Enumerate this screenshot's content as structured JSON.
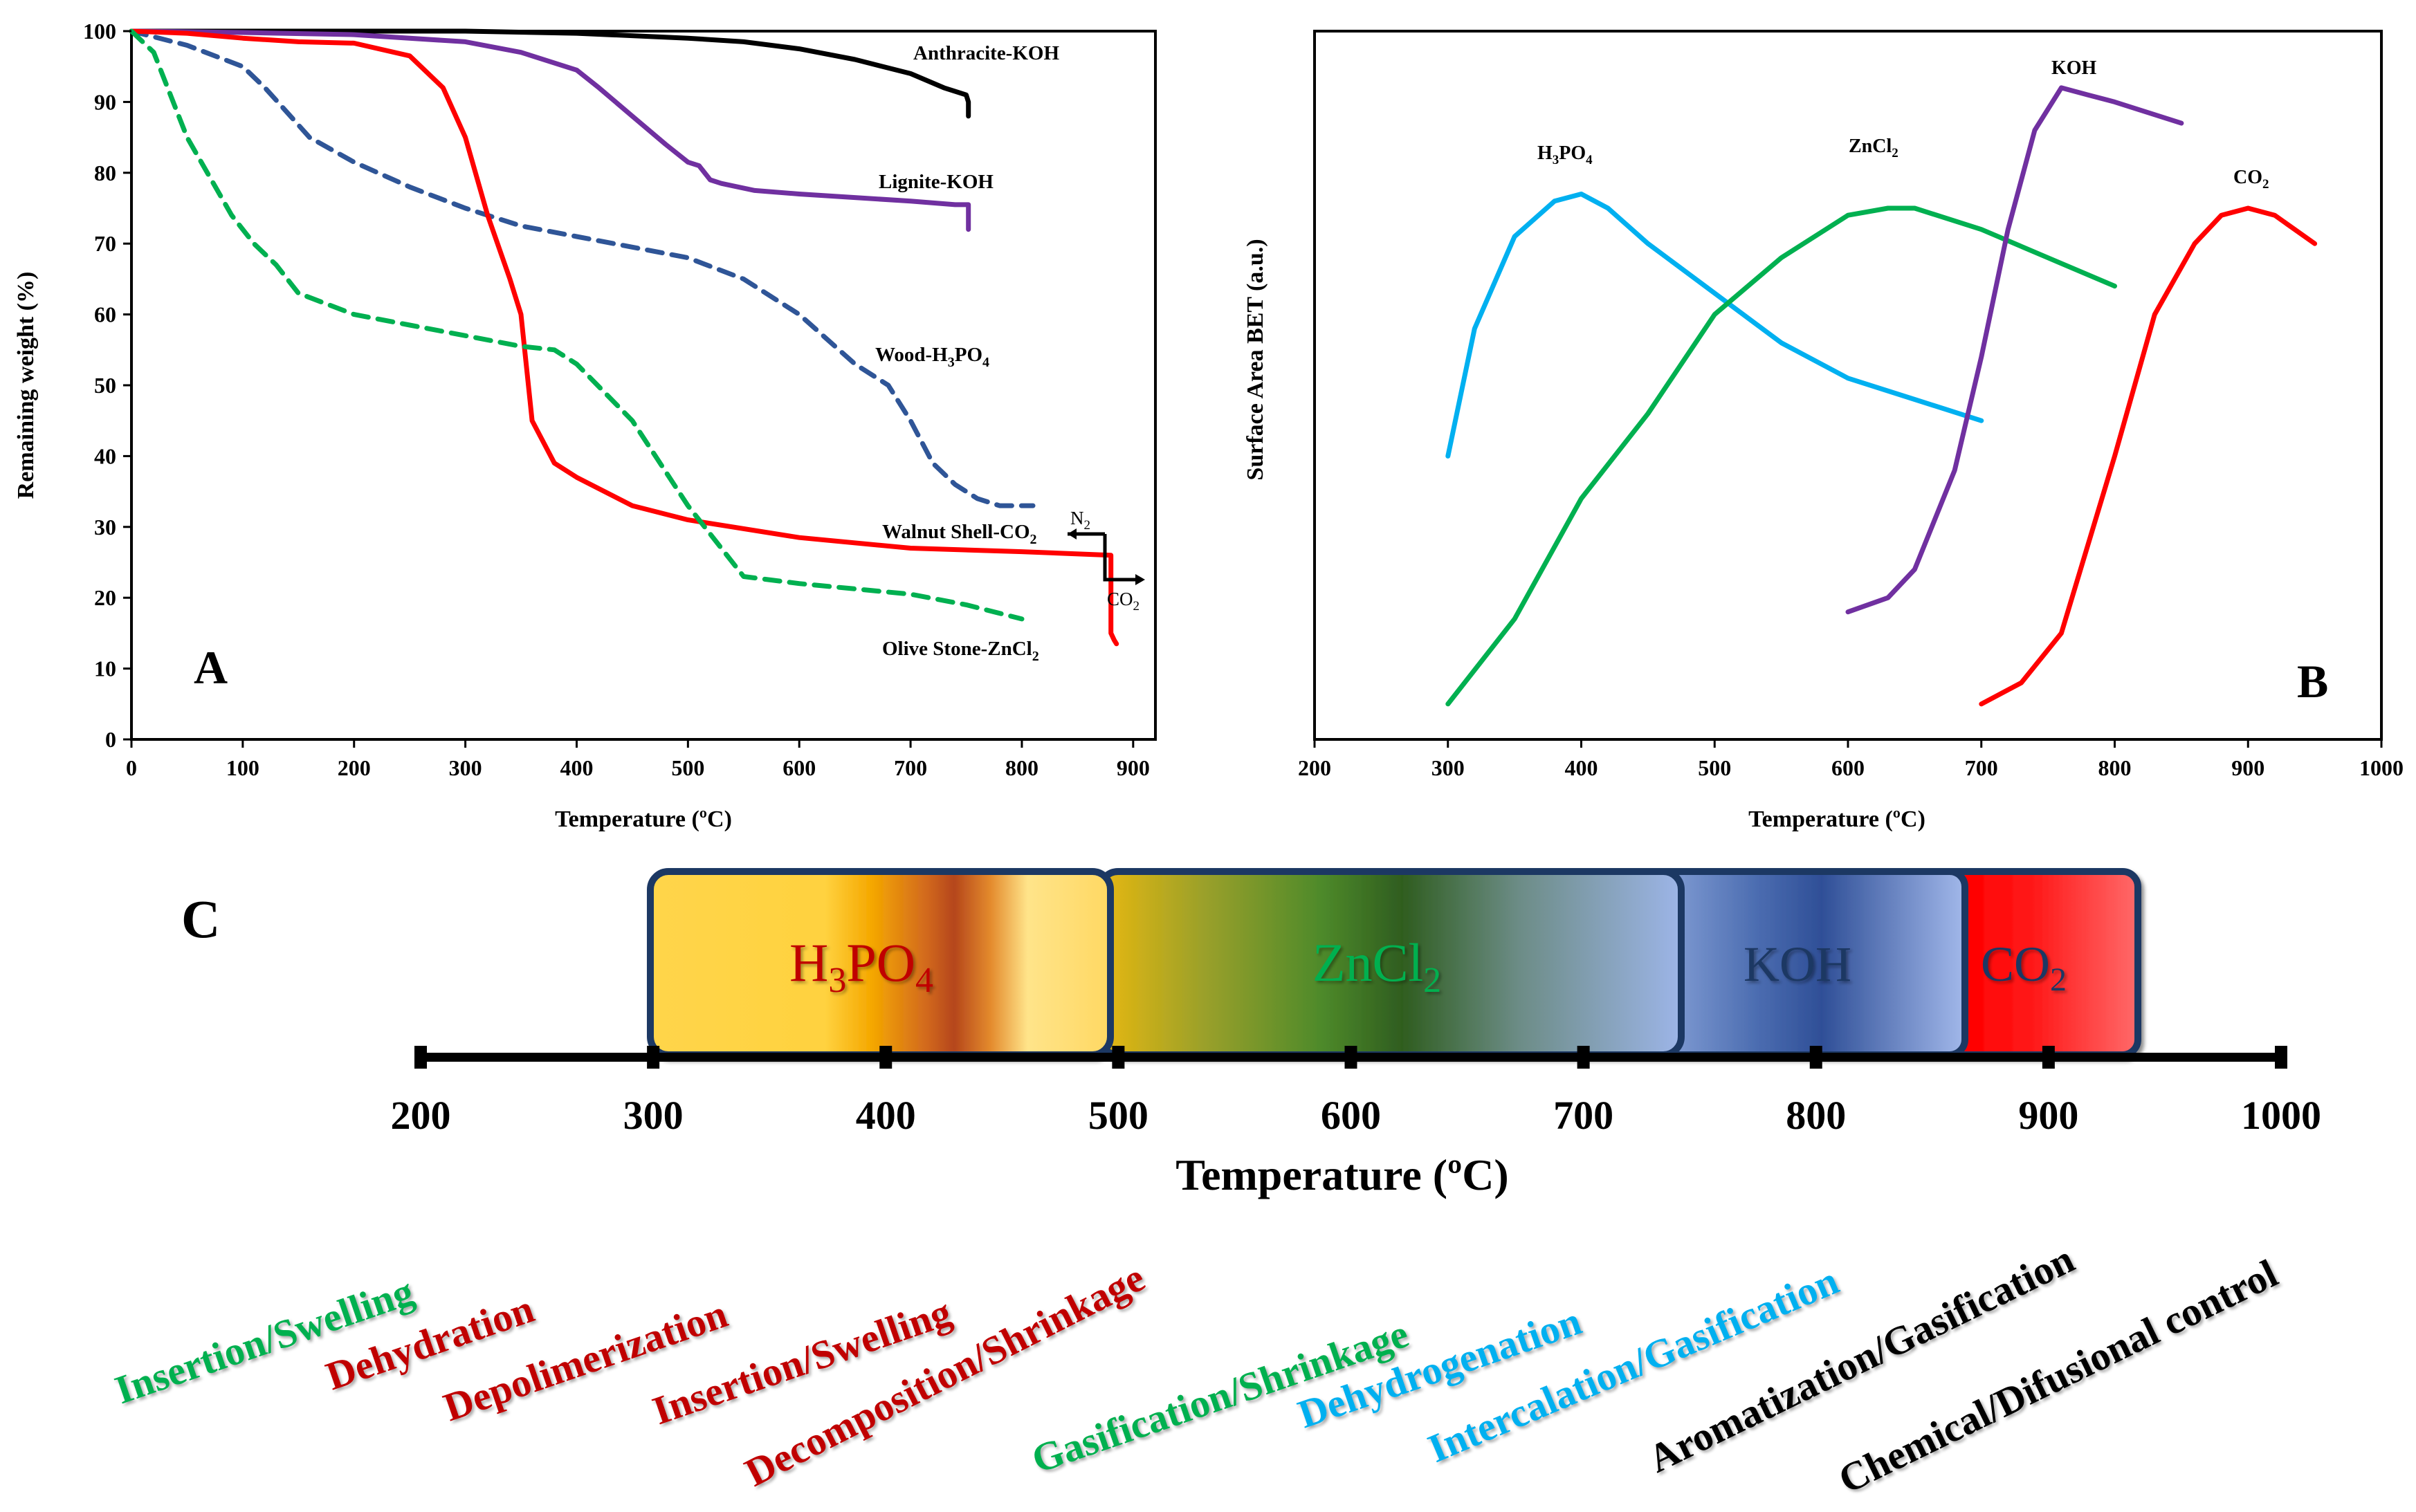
{
  "colors": {
    "axis": "#000000",
    "anthracite": "#000000",
    "lignite": "#7030a0",
    "wood": "#2f5597",
    "walnut": "#ff0000",
    "olive": "#00b050",
    "h3po4_b": "#00b0f0",
    "zncl2_b": "#00b050",
    "koh_b": "#7030a0",
    "co2_b": "#ff0000",
    "green_text": "#00b050",
    "red_text": "#c00000",
    "blue_text": "#00b0f0",
    "black_text": "#000000",
    "band_border": "#1f3864"
  },
  "chart_data": [
    {
      "panel": "A",
      "type": "line",
      "panel_label": "A",
      "xlabel": "Temperature (ºC)",
      "ylabel": "Remaining weight (%)",
      "xlim": [
        0,
        920
      ],
      "ylim": [
        0,
        100
      ],
      "xticks": [
        0,
        100,
        200,
        300,
        400,
        500,
        600,
        700,
        800,
        900
      ],
      "yticks": [
        0,
        10,
        20,
        30,
        40,
        50,
        60,
        70,
        80,
        90,
        100
      ],
      "series": [
        {
          "name": "Anthracite-KOH",
          "key": "anthracite",
          "dash": false,
          "x": [
            0,
            100,
            200,
            300,
            400,
            500,
            550,
            600,
            650,
            700,
            730,
            750,
            752,
            752
          ],
          "y": [
            100,
            100,
            100,
            100,
            99.7,
            99,
            98.5,
            97.5,
            96,
            94,
            92,
            91,
            90,
            88
          ]
        },
        {
          "name": "Lignite-KOH",
          "key": "lignite",
          "dash": false,
          "x": [
            0,
            100,
            200,
            300,
            350,
            400,
            420,
            450,
            480,
            500,
            510,
            520,
            530,
            560,
            600,
            650,
            700,
            740,
            750,
            752,
            752
          ],
          "y": [
            100,
            99.8,
            99.5,
            98.5,
            97,
            94.5,
            92,
            88,
            84,
            81.5,
            81,
            79,
            78.5,
            77.5,
            77,
            76.5,
            76,
            75.5,
            75.5,
            75.5,
            72
          ]
        },
        {
          "name": "Wood-H3PO4",
          "key": "wood",
          "dash": true,
          "x": [
            0,
            50,
            100,
            120,
            160,
            200,
            250,
            300,
            350,
            400,
            450,
            500,
            550,
            600,
            650,
            680,
            700,
            720,
            740,
            760,
            780,
            800,
            810
          ],
          "y": [
            100,
            98,
            95,
            92,
            85,
            81.5,
            78,
            75,
            72.5,
            71,
            69.5,
            68,
            65,
            60,
            53,
            50,
            45,
            39,
            36,
            34,
            33,
            33,
            33
          ]
        },
        {
          "name": "Walnut Shell-CO2",
          "key": "walnut",
          "dash": false,
          "x": [
            0,
            50,
            100,
            150,
            200,
            250,
            280,
            300,
            320,
            340,
            350,
            360,
            380,
            400,
            450,
            500,
            600,
            700,
            800,
            880,
            880,
            883,
            885
          ],
          "y": [
            100,
            99.7,
            99,
            98.5,
            98.3,
            96.5,
            92,
            85,
            74,
            65,
            60,
            45,
            39,
            37,
            33,
            31,
            28.5,
            27,
            26.5,
            26,
            15,
            14,
            13.5
          ]
        },
        {
          "name": "Olive Stone-ZnCl2",
          "key": "olive",
          "dash": true,
          "x": [
            0,
            20,
            50,
            90,
            110,
            130,
            150,
            200,
            250,
            300,
            350,
            380,
            400,
            450,
            500,
            550,
            600,
            700,
            750,
            800
          ],
          "y": [
            100,
            97,
            85,
            74,
            70,
            67,
            63,
            60,
            58.5,
            57,
            55.5,
            55,
            53,
            45,
            33,
            23,
            22,
            20.5,
            19,
            17
          ]
        }
      ],
      "series_labels": [
        "Anthracite-KOH",
        "Lignite-KOH",
        "Wood-H3PO4",
        "Walnut Shell-CO2",
        "Olive Stone-ZnCl2"
      ],
      "annotations": [
        {
          "text": "N",
          "sub": "2",
          "direction": "left"
        },
        {
          "text": "CO",
          "sub": "2",
          "direction": "right"
        }
      ]
    },
    {
      "panel": "B",
      "type": "line",
      "panel_label": "B",
      "xlabel": "Temperature (ºC)",
      "ylabel": "Surface Area BET (a.u.)",
      "xlim": [
        200,
        1000
      ],
      "ylim": [
        0,
        100
      ],
      "xticks": [
        200,
        300,
        400,
        500,
        600,
        700,
        800,
        900,
        1000
      ],
      "series": [
        {
          "name": "H3PO4",
          "key": "h3po4_b",
          "x": [
            300,
            320,
            350,
            380,
            400,
            420,
            450,
            500,
            550,
            600,
            650,
            700
          ],
          "y": [
            40,
            58,
            71,
            76,
            77,
            75,
            70,
            63,
            56,
            51,
            48,
            45
          ]
        },
        {
          "name": "ZnCl2",
          "key": "zncl2_b",
          "x": [
            300,
            350,
            400,
            450,
            500,
            550,
            600,
            630,
            650,
            700,
            750,
            800
          ],
          "y": [
            5,
            17,
            34,
            46,
            60,
            68,
            74,
            75,
            75,
            72,
            68,
            64
          ]
        },
        {
          "name": "KOH",
          "key": "koh_b",
          "x": [
            600,
            630,
            650,
            680,
            700,
            720,
            740,
            760,
            780,
            800,
            850
          ],
          "y": [
            18,
            20,
            24,
            38,
            54,
            72,
            86,
            92,
            91,
            90,
            87
          ]
        },
        {
          "name": "CO2",
          "key": "co2_b",
          "x": [
            700,
            730,
            760,
            800,
            830,
            860,
            880,
            900,
            920,
            950
          ],
          "y": [
            5,
            8,
            15,
            40,
            60,
            70,
            74,
            75,
            74,
            70
          ]
        }
      ],
      "series_labels": [
        {
          "main": "H",
          "sub": "3",
          "main2": "PO",
          "sub2": "4"
        },
        {
          "main": "ZnCl",
          "sub": "2"
        },
        {
          "main": "KOH"
        },
        {
          "main": "CO",
          "sub": "2"
        }
      ]
    },
    {
      "panel": "C",
      "type": "band",
      "panel_label": "C",
      "xlabel": "Temperature (ºC)",
      "xlim": [
        200,
        1000
      ],
      "xticks": [
        200,
        300,
        400,
        500,
        600,
        700,
        800,
        900,
        1000
      ],
      "bands": [
        {
          "label_main": "H",
          "sub1": "3",
          "label_mid": "PO",
          "sub2": "4",
          "from": 300,
          "to": 500,
          "text_color": "#c00000"
        },
        {
          "label_main": "ZnCl",
          "sub1": "2",
          "label_mid": "",
          "sub2": "",
          "from": 500,
          "to": 745,
          "text_color": "#00b050"
        },
        {
          "label_main": "KOH",
          "sub1": "",
          "label_mid": "",
          "sub2": "",
          "from": 740,
          "to": 866,
          "text_color": "#1f3864"
        },
        {
          "label_main": "CO",
          "sub1": "2",
          "label_mid": "",
          "sub2": "",
          "from": 860,
          "to": 940,
          "text_color": "#1f3864"
        }
      ],
      "processes": [
        {
          "text": "Insertion/Swelling",
          "color": "#00b050"
        },
        {
          "text": "Dehydration",
          "color": "#c00000"
        },
        {
          "text": "Depolimerization",
          "color": "#c00000"
        },
        {
          "text": "Insertion/Swelling",
          "color": "#c00000"
        },
        {
          "text": "Decomposition/Shrinkage",
          "color": "#c00000"
        },
        {
          "text": "Gasification/Shrinkage",
          "color": "#00b050"
        },
        {
          "text": "Dehydrogenation",
          "color": "#00b0f0"
        },
        {
          "text": "Intercalation/Gasification",
          "color": "#00b0f0"
        },
        {
          "text": "Aromatization/Gasification",
          "color": "#000000"
        },
        {
          "text": "Chemical/Difusional control",
          "color": "#000000"
        }
      ]
    }
  ]
}
